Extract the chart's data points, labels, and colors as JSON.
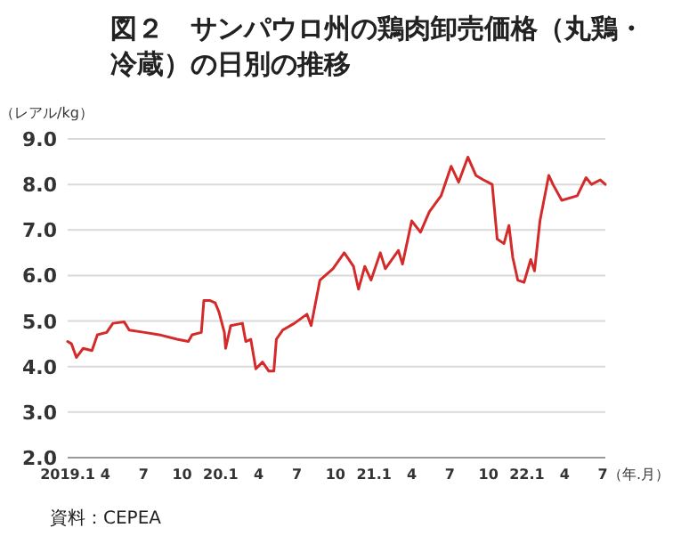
{
  "chart_data": {
    "type": "line",
    "title": "図２　サンパウロ州の鶏肉卸売価格（丸鶏・冷蔵）の日別の推移",
    "ylabel": "（レアル/kg）",
    "xlabel": "（年.月）",
    "annotations": [
      "資料：CEPEA"
    ],
    "x": [
      "2019-01-01",
      "2019-01-10",
      "2019-01-22",
      "2019-02-07",
      "2019-02-28",
      "2019-03-13",
      "2019-04-04",
      "2019-04-19",
      "2019-05-16",
      "2019-05-28",
      "2019-07-04",
      "2019-08-07",
      "2019-09-19",
      "2019-10-16",
      "2019-10-25",
      "2019-11-16",
      "2019-11-22",
      "2019-12-07",
      "2019-12-19",
      "2019-12-28",
      "2020-01-10",
      "2020-01-13",
      "2020-01-25",
      "2020-02-22",
      "2020-03-01",
      "2020-03-13",
      "2020-03-25",
      "2020-04-10",
      "2020-04-25",
      "2020-05-07",
      "2020-05-13",
      "2020-05-28",
      "2020-06-25",
      "2020-07-25",
      "2020-08-04",
      "2020-08-25",
      "2020-09-25",
      "2020-10-22",
      "2020-11-13",
      "2020-11-25",
      "2020-12-10",
      "2020-12-25",
      "2021-01-16",
      "2021-01-28",
      "2021-02-28",
      "2021-03-10",
      "2021-04-01",
      "2021-04-22",
      "2021-05-13",
      "2021-06-10",
      "2021-07-04",
      "2021-07-22",
      "2021-08-13",
      "2021-09-01",
      "2021-09-19",
      "2021-10-10",
      "2021-10-22",
      "2021-11-07",
      "2021-11-19",
      "2021-11-28",
      "2021-12-10",
      "2021-12-25",
      "2022-01-10",
      "2022-01-19",
      "2022-02-01",
      "2022-02-22",
      "2022-03-04",
      "2022-03-25",
      "2022-05-01",
      "2022-05-22",
      "2022-06-04",
      "2022-06-25",
      "2022-07-07"
    ],
    "series": [
      {
        "color": "#d42a2a",
        "values": [
          4.55,
          4.5,
          4.2,
          4.4,
          4.35,
          4.7,
          4.75,
          4.95,
          4.98,
          4.8,
          4.75,
          4.7,
          4.6,
          4.55,
          4.7,
          4.75,
          5.45,
          5.45,
          5.4,
          5.2,
          4.75,
          4.4,
          4.9,
          4.95,
          4.55,
          4.6,
          3.95,
          4.1,
          3.9,
          3.9,
          4.6,
          4.8,
          4.95,
          5.15,
          4.9,
          5.9,
          6.15,
          6.5,
          6.2,
          5.7,
          6.2,
          5.9,
          6.5,
          6.15,
          6.55,
          6.25,
          7.2,
          6.95,
          7.4,
          7.75,
          8.4,
          8.05,
          8.6,
          8.2,
          8.1,
          8.0,
          6.8,
          6.7,
          7.1,
          6.4,
          5.9,
          5.85,
          6.35,
          6.1,
          7.2,
          8.2,
          8.0,
          7.65,
          7.75,
          8.15,
          8.0,
          8.1,
          8.0
        ]
      }
    ],
    "xlim": [
      "2019-01-01",
      "2022-07-07"
    ],
    "xticks": [
      {
        "value": "2019-01-01",
        "label": "2019.1"
      },
      {
        "value": "2019-04-01",
        "label": "4"
      },
      {
        "value": "2019-07-01",
        "label": "7"
      },
      {
        "value": "2019-10-01",
        "label": "10"
      },
      {
        "value": "2020-01-01",
        "label": "20.1"
      },
      {
        "value": "2020-04-01",
        "label": "4"
      },
      {
        "value": "2020-07-01",
        "label": "7"
      },
      {
        "value": "2020-10-01",
        "label": "10"
      },
      {
        "value": "2021-01-01",
        "label": "21.1"
      },
      {
        "value": "2021-04-01",
        "label": "4"
      },
      {
        "value": "2021-07-01",
        "label": "7"
      },
      {
        "value": "2021-10-01",
        "label": "10"
      },
      {
        "value": "2022-01-01",
        "label": "22.1"
      },
      {
        "value": "2022-04-01",
        "label": "4"
      },
      {
        "value": "2022-07-01",
        "label": "7"
      }
    ],
    "ylim": [
      2,
      9
    ],
    "yticks": [
      {
        "value": 2,
        "label": "2.0"
      },
      {
        "value": 3,
        "label": "3.0"
      },
      {
        "value": 4,
        "label": "4.0"
      },
      {
        "value": 5,
        "label": "5.0"
      },
      {
        "value": 6,
        "label": "6.0"
      },
      {
        "value": 7,
        "label": "7.0"
      },
      {
        "value": 8,
        "label": "8.0"
      },
      {
        "value": 9,
        "label": "9.0"
      }
    ],
    "grid": "y"
  }
}
